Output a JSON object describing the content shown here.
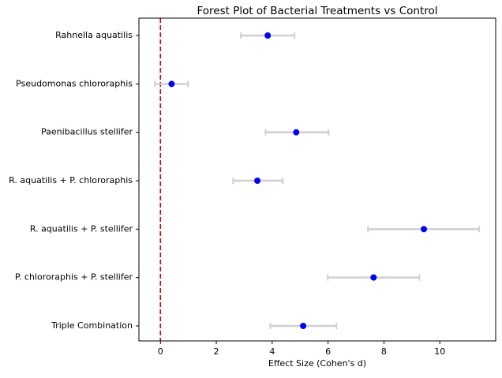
{
  "chart_data": {
    "type": "forest",
    "title": "Forest Plot of Bacterial Treatments vs Control",
    "xlabel": "Effect Size (Cohen's d)",
    "categories": [
      "Rahnella aquatilis",
      "Pseudomonas chlororaphis",
      "Paenibacillus stellifer",
      "R. aquatilis + P. chlororaphis",
      "R. aquatilis + P. stellifer",
      "P. chlororaphis + P. stellifer",
      "Triple Combination"
    ],
    "values": [
      3.84,
      0.4,
      4.86,
      3.47,
      9.43,
      7.63,
      5.11
    ],
    "lower": [
      2.88,
      -0.2,
      3.76,
      2.6,
      7.43,
      5.99,
      3.93
    ],
    "upper": [
      4.8,
      0.99,
      6.02,
      4.38,
      11.41,
      9.27,
      6.3
    ],
    "color": "#0000ff",
    "ci_color": "#d0d0d0",
    "ref_line": 0,
    "ref_color": "#e00000",
    "xlim": [
      -0.77,
      12.0
    ],
    "xticks": [
      0,
      2,
      4,
      6,
      8,
      10
    ]
  }
}
